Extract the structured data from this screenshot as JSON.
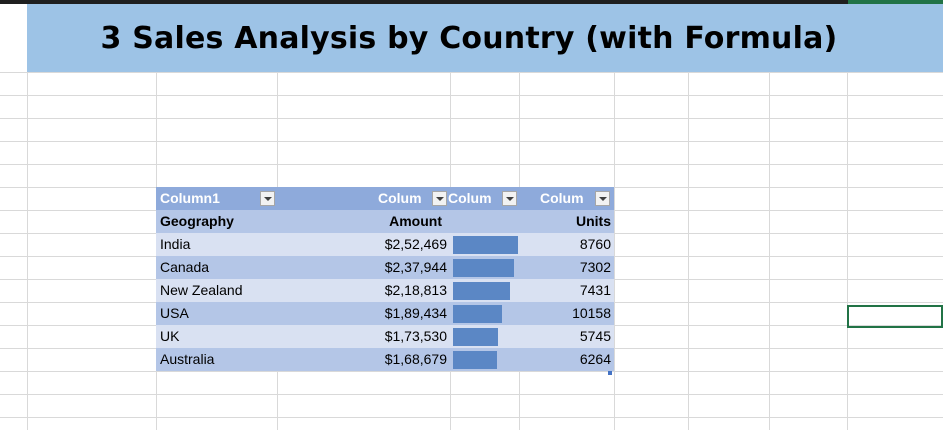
{
  "banner": {
    "title": "3 Sales Analysis by Country (with Formula)"
  },
  "table": {
    "headers": [
      "Column1",
      "Colum",
      "Colum",
      "Colum"
    ],
    "subheaders": [
      "Geography",
      "Amount",
      "",
      "Units"
    ],
    "rows": [
      {
        "geography": "India",
        "amount": "$2,52,469",
        "bar_fraction": 1.0,
        "units": "8760"
      },
      {
        "geography": "Canada",
        "amount": "$2,37,944",
        "bar_fraction": 0.94,
        "units": "7302"
      },
      {
        "geography": "New Zealand",
        "amount": "$2,18,813",
        "bar_fraction": 0.87,
        "units": "7431"
      },
      {
        "geography": "USA",
        "amount": "$1,89,434",
        "bar_fraction": 0.75,
        "units": "10158"
      },
      {
        "geography": "UK",
        "amount": "$1,73,530",
        "bar_fraction": 0.69,
        "units": "5745"
      },
      {
        "geography": "Australia",
        "amount": "$1,68,679",
        "bar_fraction": 0.67,
        "units": "6264"
      }
    ]
  },
  "colors": {
    "banner": "#9dc3e6",
    "table_header": "#8eaadb",
    "row_light": "#d9e1f2",
    "row_dark": "#b4c6e7",
    "data_bar": "#5b87c5",
    "selection": "#217346"
  }
}
